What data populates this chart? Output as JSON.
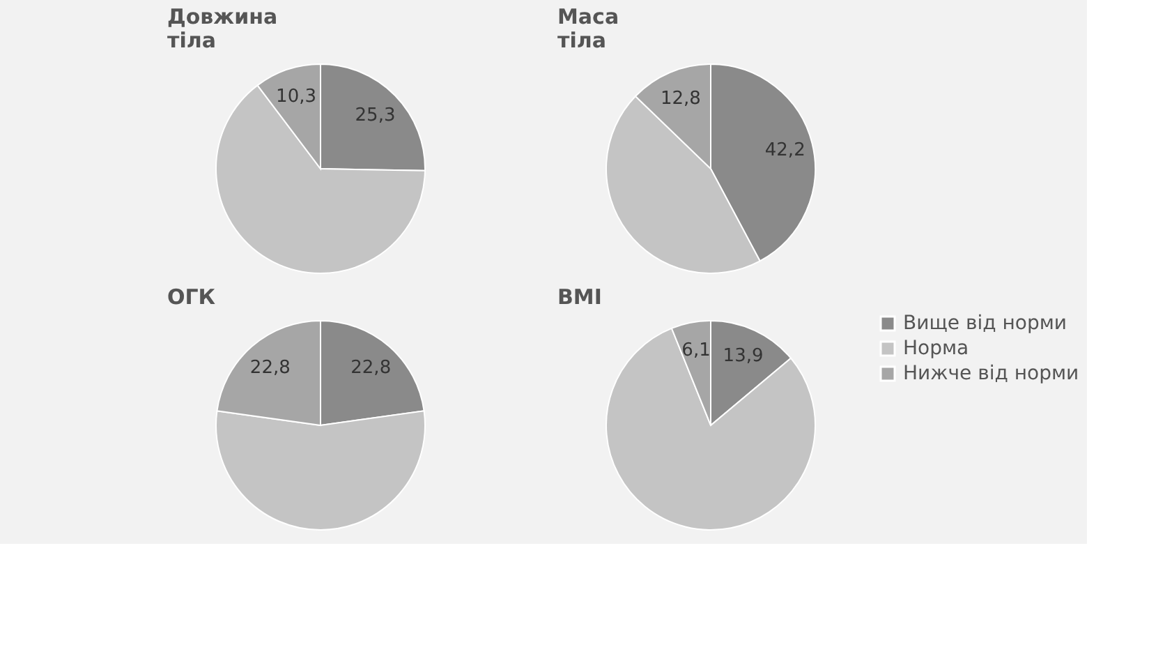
{
  "chart_data": [
    {
      "type": "pie",
      "title": "Довжина тіла",
      "categories": [
        null,
        null,
        null
      ],
      "values": [
        25.3,
        64.4,
        10.3
      ],
      "value_labels": [
        "25,3",
        null,
        "10,3"
      ],
      "colors": [
        "#8a8a8a",
        "#c4c4c4",
        "#a6a6a6"
      ]
    },
    {
      "type": "pie",
      "title": "Маса тіла",
      "categories": [
        null,
        null,
        null
      ],
      "values": [
        42.2,
        45.0,
        12.8
      ],
      "value_labels": [
        "42,2",
        null,
        "12,8"
      ],
      "colors": [
        "#8a8a8a",
        "#c4c4c4",
        "#a6a6a6"
      ]
    },
    {
      "type": "pie",
      "title": "ОГК",
      "categories": [
        null,
        null,
        null
      ],
      "values": [
        22.8,
        54.4,
        22.8
      ],
      "value_labels": [
        "22,8",
        null,
        "22,8"
      ],
      "colors": [
        "#8a8a8a",
        "#c4c4c4",
        "#a6a6a6"
      ]
    },
    {
      "type": "pie",
      "title": "BMI",
      "categories": [
        "Вище від норми",
        "Норма",
        "Нижче від норми"
      ],
      "values": [
        13.9,
        80.0,
        6.1
      ],
      "value_labels": [
        "13,9",
        null,
        "6,1"
      ],
      "colors": [
        "#8a8a8a",
        "#c4c4c4",
        "#a6a6a6"
      ],
      "legend": "right"
    }
  ]
}
